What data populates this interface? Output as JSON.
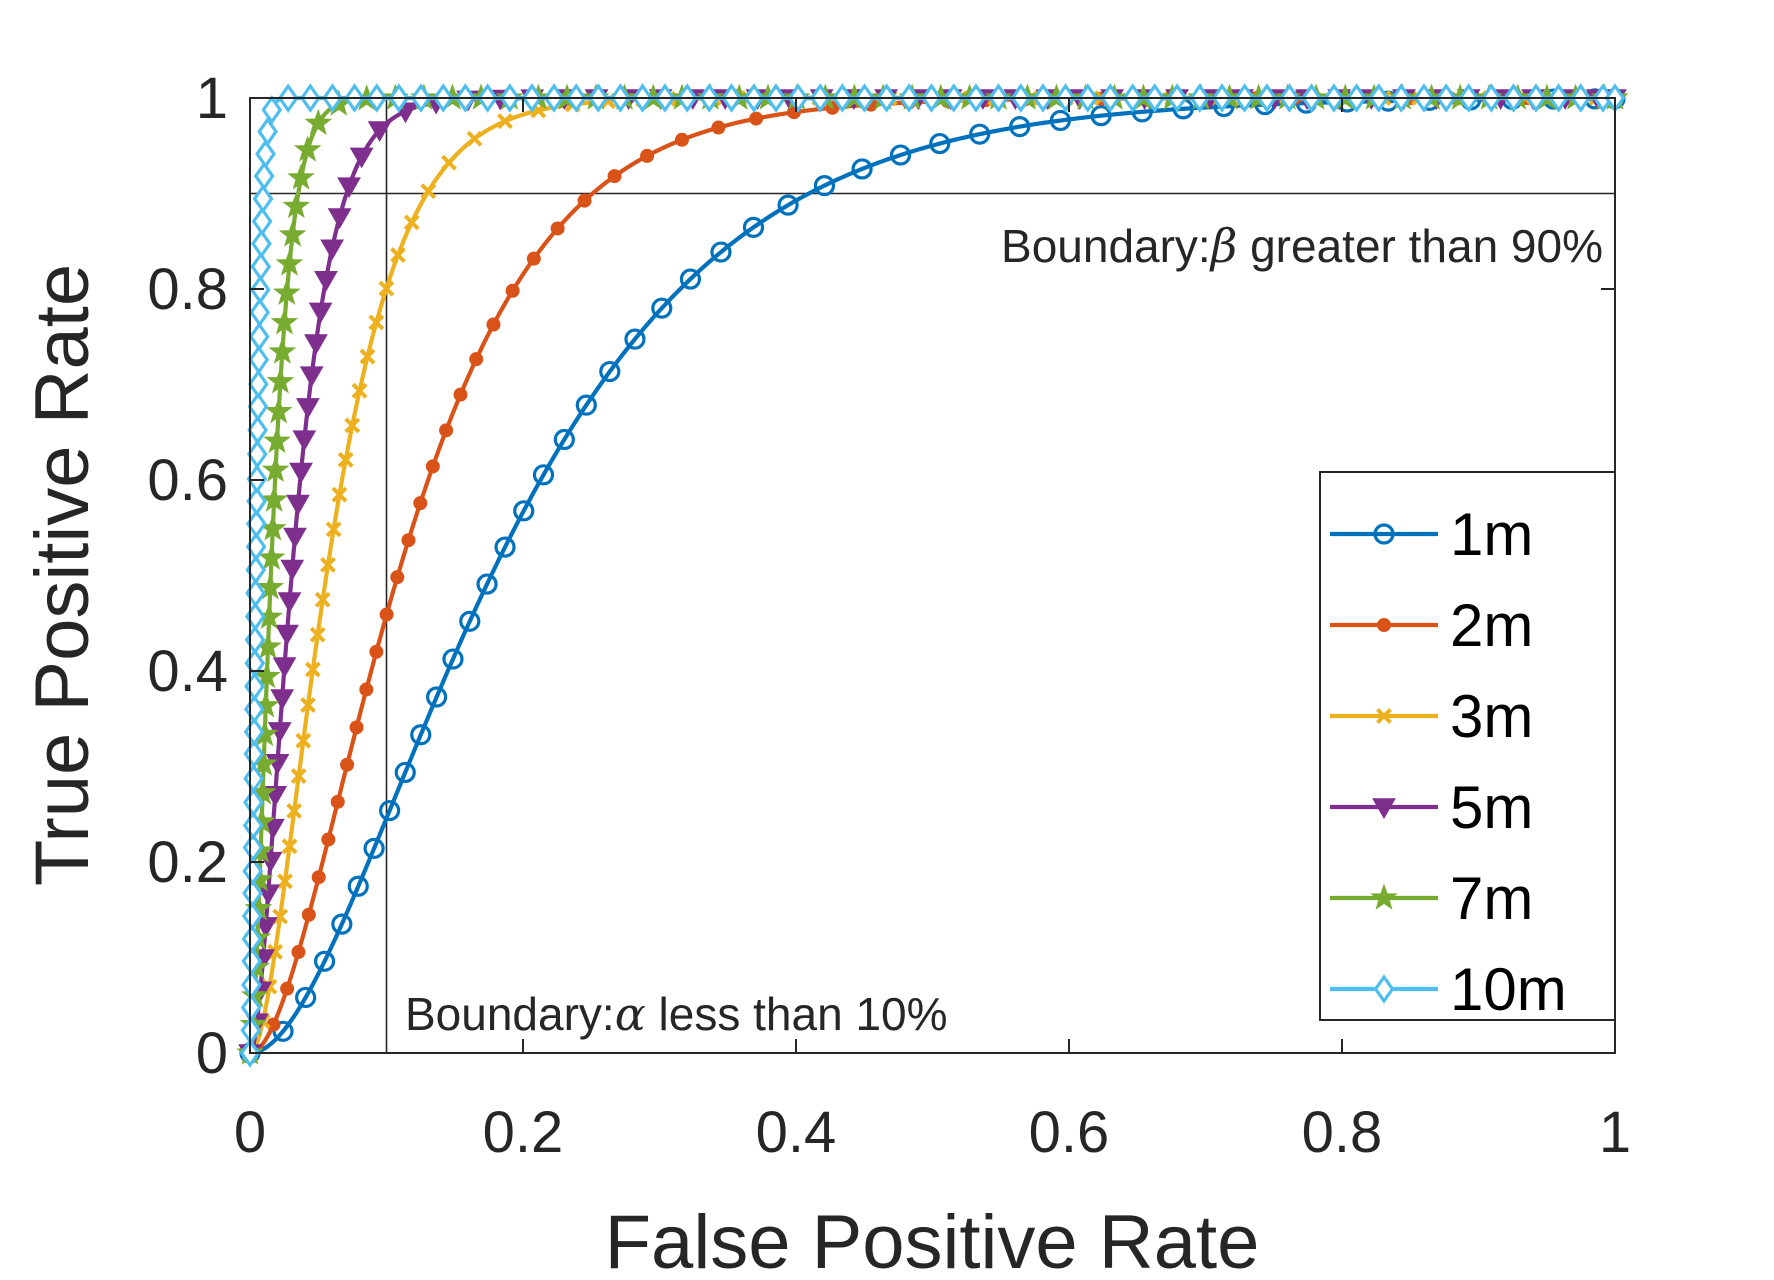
{
  "chart_data": {
    "type": "line",
    "title": "",
    "xlabel": "False Positive Rate",
    "ylabel": "True Positive Rate",
    "xlim": [
      0,
      1
    ],
    "ylim": [
      0,
      1
    ],
    "xticks": [
      0,
      0.2,
      0.4,
      0.6,
      0.8,
      1
    ],
    "yticks": [
      0,
      0.2,
      0.4,
      0.6,
      0.8,
      1
    ],
    "xtick_labels": [
      "0",
      "0.2",
      "0.4",
      "0.6",
      "0.8",
      "1"
    ],
    "ytick_labels": [
      "0",
      "0.2",
      "0.4",
      "0.6",
      "0.8",
      "1"
    ],
    "grid": false,
    "legend_position": "bottom-right",
    "boundaries": [
      {
        "axis": "x",
        "value": 0.1,
        "label_prefix": "Boundary:",
        "symbol": "α",
        "label_suffix": " less than 10%"
      },
      {
        "axis": "y",
        "value": 0.9,
        "label_prefix": "Boundary:",
        "symbol": "β",
        "label_suffix": " greater than 90%"
      }
    ],
    "series": [
      {
        "name": "1m",
        "color": "#0072BD",
        "marker": "circle",
        "k": 9.5
      },
      {
        "name": "2m",
        "color": "#D95319",
        "marker": "dot",
        "k": 15.5
      },
      {
        "name": "3m",
        "color": "#EDB120",
        "marker": "x",
        "k": 30
      },
      {
        "name": "5m",
        "color": "#7E2F8E",
        "marker": "triangle-down",
        "k": 55
      },
      {
        "name": "7m",
        "color": "#77AC30",
        "marker": "star",
        "k": 110
      },
      {
        "name": "10m",
        "color": "#4DBEEE",
        "marker": "diamond",
        "k": 400
      }
    ],
    "curve_model": "tpr = 1 - (1 + k*fpr) * exp(-k*fpr)"
  }
}
